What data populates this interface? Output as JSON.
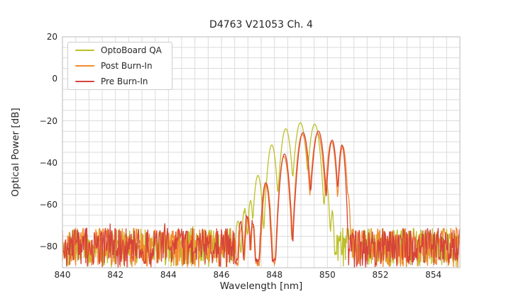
{
  "figure": {
    "background": "#ffffff",
    "text_color": "#262626"
  },
  "chart_data": {
    "type": "line",
    "title": "D4763 V21053 Ch. 4",
    "xlabel": "Wavelength [nm]",
    "ylabel": "Optical Power [dB]",
    "xlim": [
      840,
      855
    ],
    "ylim": [
      -90,
      20
    ],
    "x_ticks": [
      840,
      842,
      844,
      846,
      848,
      850,
      852,
      854
    ],
    "x_tick_labels": [
      "840",
      "842",
      "844",
      "846",
      "848",
      "850",
      "852",
      "854"
    ],
    "y_ticks": [
      20,
      0,
      -20,
      -40,
      -60,
      -80
    ],
    "y_tick_labels": [
      "20",
      "0",
      "−20",
      "−40",
      "−60",
      "−80"
    ],
    "grid": {
      "visible": true,
      "x_step_nm": 0.5,
      "y_step_db": 5,
      "color": "#dbdbdb",
      "spine_color": "#c6c6c6"
    },
    "legend": {
      "location": "upper left",
      "entries": [
        "OptoBoard QA",
        "Post Burn-In",
        "Pre Burn-In"
      ]
    },
    "sampling_step_nm": 0.02,
    "notch_k_db": 22,
    "noise_floor": {
      "bottom_db": -90,
      "typical_top_db": -72,
      "spike_top_db": -70
    },
    "series": [
      {
        "name": "OptoBoard QA",
        "color": "#bcc028",
        "signal_region_nm": [
          846.42,
          850.34
        ],
        "peak_wavelength_nm": 848.98,
        "peak_power_db": -20.9,
        "lobes": [
          {
            "center_nm": 846.62,
            "peak_db": -67.0,
            "halfwidth_nm": 0.12
          },
          {
            "center_nm": 846.88,
            "peak_db": -62.0,
            "halfwidth_nm": 0.13
          },
          {
            "center_nm": 847.1,
            "peak_db": -58.0,
            "halfwidth_nm": 0.12
          },
          {
            "center_nm": 847.38,
            "peak_db": -46.0,
            "halfwidth_nm": 0.2
          },
          {
            "center_nm": 847.9,
            "peak_db": -31.5,
            "halfwidth_nm": 0.22
          },
          {
            "center_nm": 848.43,
            "peak_db": -23.8,
            "halfwidth_nm": 0.25
          },
          {
            "center_nm": 848.98,
            "peak_db": -20.9,
            "halfwidth_nm": 0.26
          },
          {
            "center_nm": 849.52,
            "peak_db": -21.6,
            "halfwidth_nm": 0.26
          },
          {
            "center_nm": 849.97,
            "peak_db": -50.0,
            "halfwidth_nm": 0.13
          },
          {
            "center_nm": 850.18,
            "peak_db": -64.0,
            "halfwidth_nm": 0.1
          }
        ]
      },
      {
        "name": "Post Burn-In",
        "color": "#f48a2e",
        "signal_region_nm": [
          846.55,
          850.88
        ],
        "peak_wavelength_nm": 849.63,
        "peak_power_db": -25.9,
        "lobes": [
          {
            "center_nm": 846.75,
            "peak_db": -70.0,
            "halfwidth_nm": 0.12
          },
          {
            "center_nm": 847.0,
            "peak_db": -66.0,
            "halfwidth_nm": 0.13
          },
          {
            "center_nm": 847.2,
            "peak_db": -69.0,
            "halfwidth_nm": 0.11
          },
          {
            "center_nm": 847.7,
            "peak_db": -50.0,
            "halfwidth_nm": 0.19
          },
          {
            "center_nm": 848.36,
            "peak_db": -37.0,
            "halfwidth_nm": 0.22
          },
          {
            "center_nm": 849.05,
            "peak_db": -26.4,
            "halfwidth_nm": 0.25
          },
          {
            "center_nm": 849.63,
            "peak_db": -25.9,
            "halfwidth_nm": 0.25
          },
          {
            "center_nm": 850.15,
            "peak_db": -29.8,
            "halfwidth_nm": 0.21
          },
          {
            "center_nm": 850.58,
            "peak_db": -32.2,
            "halfwidth_nm": 0.18
          },
          {
            "center_nm": 850.78,
            "peak_db": -55.0,
            "halfwidth_nm": 0.1
          }
        ]
      },
      {
        "name": "Pre Burn-In",
        "color": "#d5443a",
        "signal_region_nm": [
          846.5,
          850.78
        ],
        "peak_wavelength_nm": 849.66,
        "peak_power_db": -24.9,
        "lobes": [
          {
            "center_nm": 846.72,
            "peak_db": -68.5,
            "halfwidth_nm": 0.12
          },
          {
            "center_nm": 846.97,
            "peak_db": -65.0,
            "halfwidth_nm": 0.13
          },
          {
            "center_nm": 847.17,
            "peak_db": -68.0,
            "halfwidth_nm": 0.11
          },
          {
            "center_nm": 847.67,
            "peak_db": -49.5,
            "halfwidth_nm": 0.19
          },
          {
            "center_nm": 848.38,
            "peak_db": -35.8,
            "halfwidth_nm": 0.22
          },
          {
            "center_nm": 849.08,
            "peak_db": -25.6,
            "halfwidth_nm": 0.25
          },
          {
            "center_nm": 849.66,
            "peak_db": -24.9,
            "halfwidth_nm": 0.25
          },
          {
            "center_nm": 850.18,
            "peak_db": -29.2,
            "halfwidth_nm": 0.2
          },
          {
            "center_nm": 850.55,
            "peak_db": -31.5,
            "halfwidth_nm": 0.16
          }
        ]
      }
    ]
  }
}
